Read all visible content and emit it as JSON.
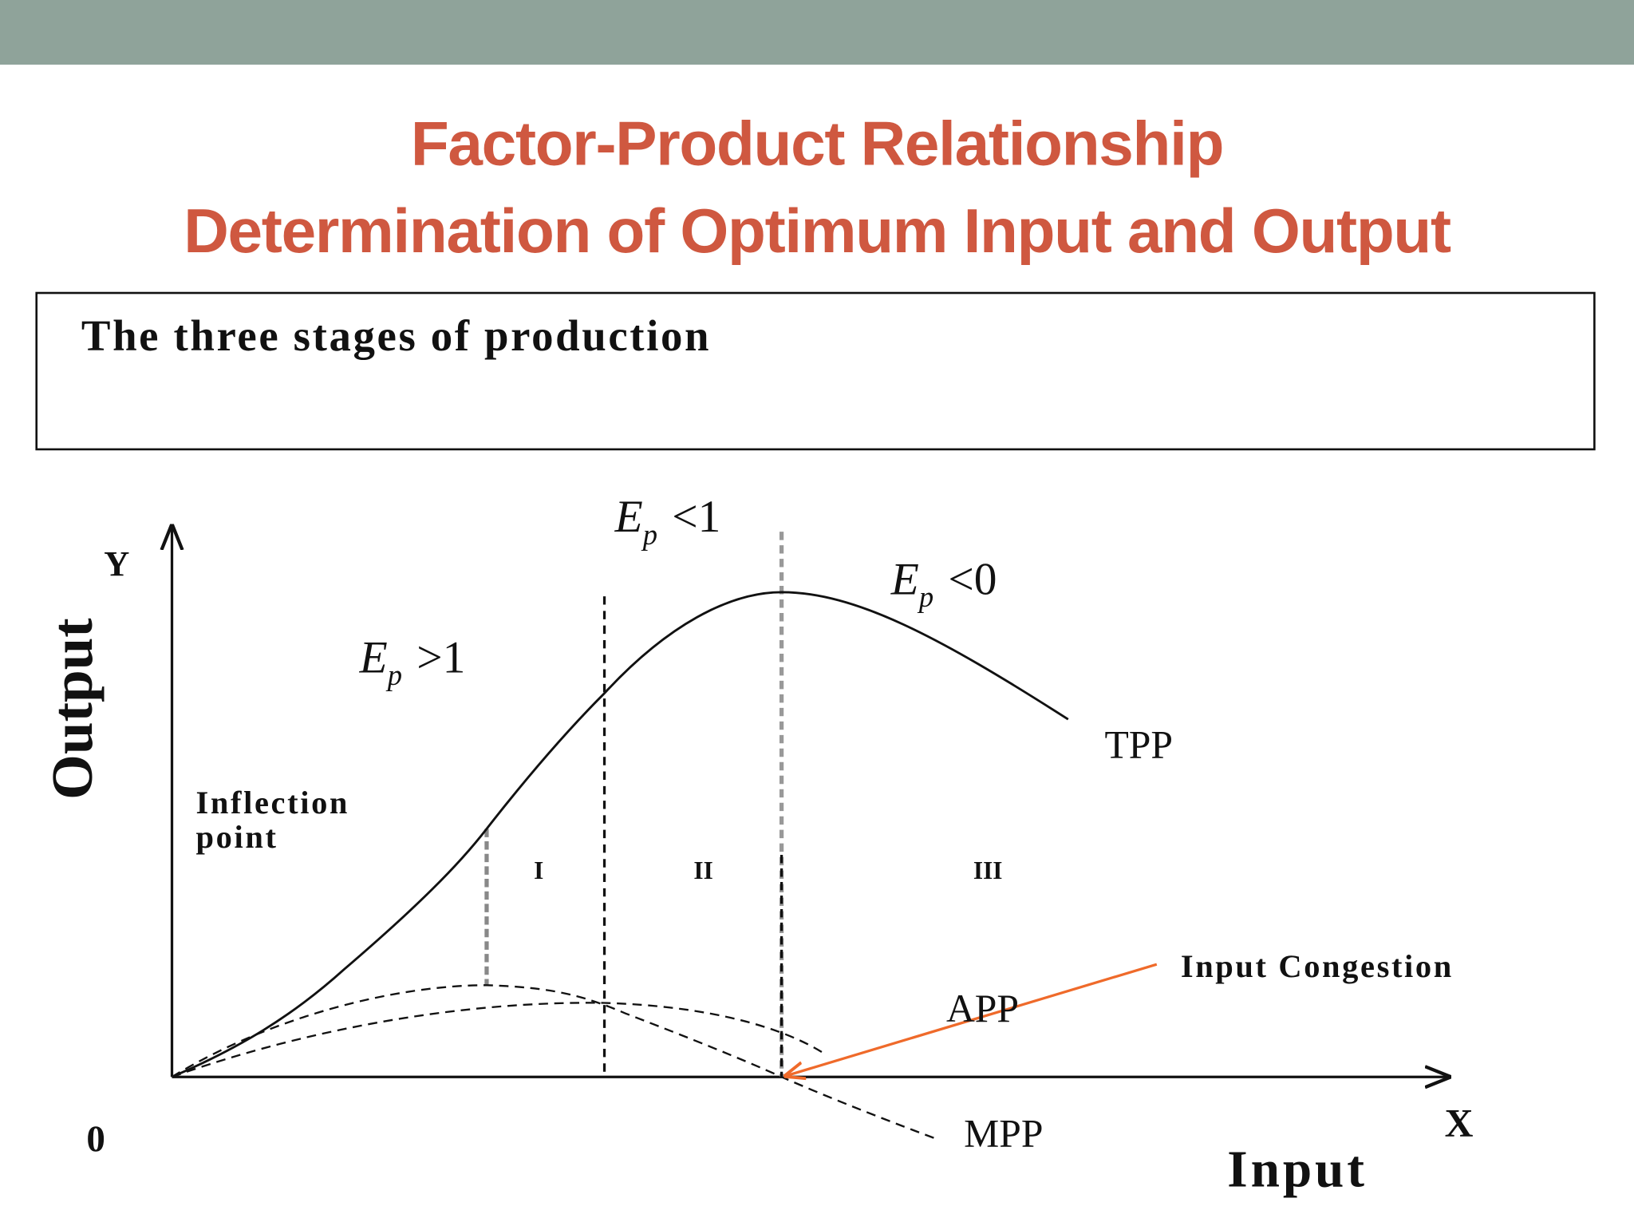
{
  "header": {
    "title": "Factor-Product Relationship",
    "subtitle": "Determination of Optimum Input and Output"
  },
  "box": {
    "text": "The three stages of production"
  },
  "diagram": {
    "y_axis_letter": "Y",
    "y_axis_label": "Output",
    "x_axis_letter": "X",
    "x_axis_label": "Input",
    "origin": "0",
    "elasticity": [
      {
        "base": "E",
        "sub": "p",
        "rest": ">1"
      },
      {
        "base": "E",
        "sub": "p",
        "rest": "<1"
      },
      {
        "base": "E",
        "sub": "p",
        "rest": "<0"
      }
    ],
    "stages": [
      "I",
      "II",
      "III"
    ],
    "curves": [
      "TPP",
      "APP",
      "MPP"
    ],
    "inflection": [
      "Inflection",
      "point"
    ],
    "congestion": "Input Congestion"
  }
}
